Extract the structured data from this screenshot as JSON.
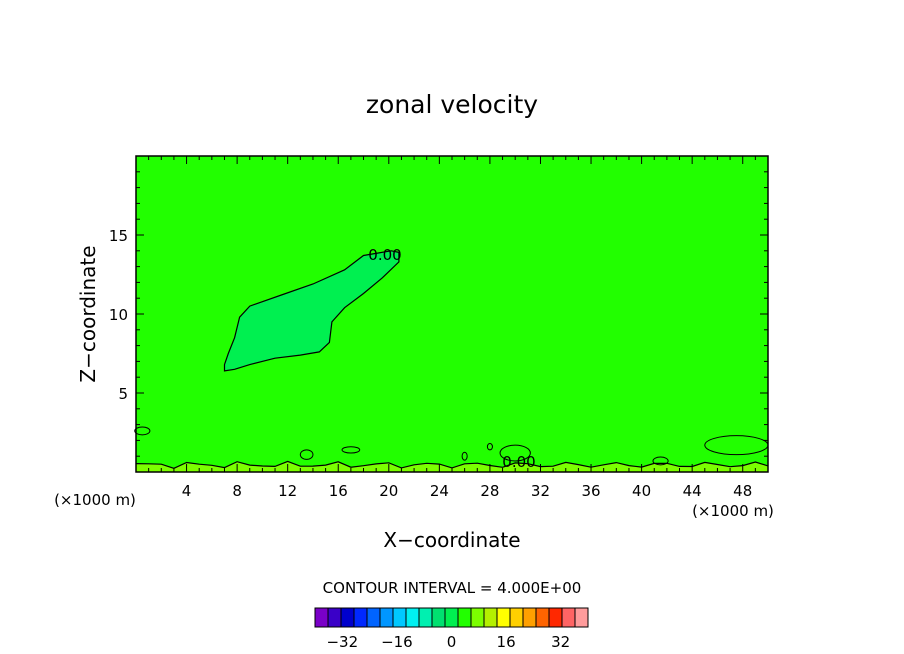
{
  "chart_data": {
    "type": "heatmap",
    "title": "zonal velocity",
    "xlabel": "X−coordinate",
    "ylabel": "Z−coordinate",
    "x_unit_label": "(×1000 m)",
    "y_unit_label": "(×1000 m)",
    "xlim": [
      0,
      50
    ],
    "ylim": [
      0,
      20
    ],
    "x_ticks": [
      4,
      8,
      12,
      16,
      20,
      24,
      28,
      32,
      36,
      40,
      44,
      48
    ],
    "y_ticks": [
      5,
      10,
      15
    ],
    "contour_labels": [
      {
        "text": "0.00",
        "x": 19.7,
        "y": 13.8
      },
      {
        "text": "0.00",
        "x": 30.3,
        "y": 0.7
      }
    ],
    "contour_interval_text": "CONTOUR INTERVAL = 4.000E+00",
    "colorbar": {
      "ticks": [
        -32,
        -16,
        0,
        16,
        32
      ],
      "levels": [
        -40,
        -36,
        -32,
        -28,
        -24,
        -20,
        -16,
        -12,
        -8,
        -4,
        0,
        4,
        8,
        12,
        16,
        20,
        24,
        28,
        32,
        36,
        40
      ],
      "colors": [
        "#7a00c8",
        "#3a00c8",
        "#0000cc",
        "#0028ff",
        "#0064ff",
        "#0096ff",
        "#00c8ff",
        "#00f0f0",
        "#00f0b0",
        "#00e070",
        "#00f050",
        "#22ff00",
        "#7cff00",
        "#b4f000",
        "#ffff00",
        "#ffd000",
        "#ffa000",
        "#ff6400",
        "#ff2800",
        "#ff6464",
        "#ff9c9c"
      ]
    },
    "background_color": "#22ff00",
    "region_color": "#00f050",
    "surface_color": "#7cff00",
    "contour_regions": [
      {
        "name": "negative-region",
        "points": [
          [
            7,
            6.4
          ],
          [
            7.8,
            6.5
          ],
          [
            9,
            6.8
          ],
          [
            11,
            7.2
          ],
          [
            13,
            7.4
          ],
          [
            14.5,
            7.6
          ],
          [
            15.3,
            8.2
          ],
          [
            15.5,
            9.5
          ],
          [
            16.5,
            10.4
          ],
          [
            18,
            11.3
          ],
          [
            19.5,
            12.3
          ],
          [
            20.8,
            13.3
          ],
          [
            20.8,
            13.9
          ],
          [
            20.2,
            14.0
          ],
          [
            18,
            13.7
          ],
          [
            16.5,
            12.8
          ],
          [
            14,
            11.9
          ],
          [
            11.5,
            11.2
          ],
          [
            9,
            10.5
          ],
          [
            8.2,
            9.8
          ],
          [
            7.8,
            8.5
          ],
          [
            7.3,
            7.5
          ],
          [
            7,
            6.8
          ]
        ]
      }
    ]
  }
}
